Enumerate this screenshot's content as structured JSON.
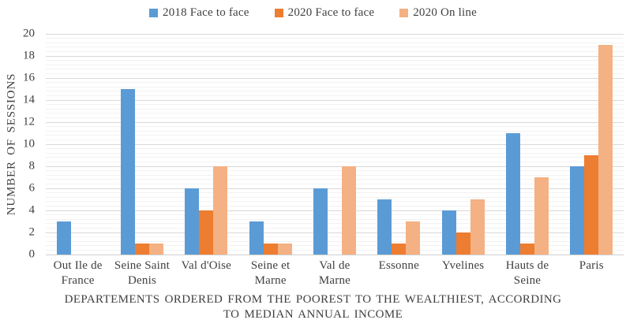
{
  "chart_data": {
    "type": "bar",
    "title": "",
    "categories": [
      "Out Ile de France",
      "Seine Saint Denis",
      "Val d'Oise",
      "Seine et Marne",
      "Val de Marne",
      "Essonne",
      "Yvelines",
      "Hauts de Seine",
      "Paris"
    ],
    "category_label_lines": [
      [
        "Out Ile de",
        "France"
      ],
      [
        "Seine Saint",
        "Denis"
      ],
      [
        "Val d'Oise"
      ],
      [
        "Seine et",
        "Marne"
      ],
      [
        "Val de",
        "Marne"
      ],
      [
        "Essonne"
      ],
      [
        "Yvelines"
      ],
      [
        "Hauts de",
        "Seine"
      ],
      [
        "Paris"
      ]
    ],
    "series": [
      {
        "name": "2018 Face to face",
        "color": "#5B9BD5",
        "values": [
          3,
          15,
          6,
          3,
          6,
          5,
          4,
          11,
          8
        ]
      },
      {
        "name": "2020 Face to face",
        "color": "#ED7D31",
        "values": [
          0,
          1,
          4,
          1,
          0,
          1,
          2,
          1,
          9
        ]
      },
      {
        "name": "2020 On line",
        "color": "#F4B183",
        "values": [
          0,
          1,
          8,
          1,
          8,
          3,
          5,
          7,
          19
        ]
      }
    ],
    "ylabel": "NUMBER OF SESSIONS",
    "xlabel": "DEPARTEMENTS ORDERED FROM THE POOREST TO THE WEALTHIEST, ACCORDING TO MEDIAN ANNUAL INCOME",
    "xlabel_lines": [
      "DEPARTEMENTS ORDERED FROM THE POOREST TO THE WEALTHIEST, ACCORDING",
      "TO MEDIAN ANNUAL INCOME"
    ],
    "ylim": [
      0,
      20
    ],
    "y_major_step": 2,
    "y_minor_step": 0.4,
    "legend_position": "top",
    "grid": true,
    "colors": {
      "major_grid": "#D9D9D9",
      "minor_grid": "#F2F2F2",
      "axis_line": "#D0D0D0",
      "text": "#404040"
    }
  }
}
